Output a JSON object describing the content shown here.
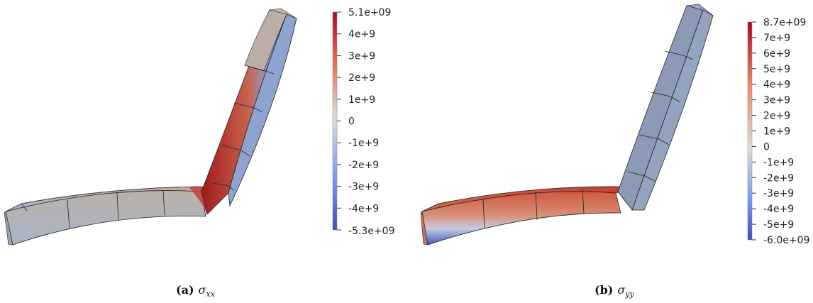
{
  "panels": [
    {
      "caption_label": "(a)",
      "caption_symbol": "σ",
      "caption_sub": "xx",
      "colorbar": {
        "max_label": "5.1e+09",
        "min_label": "-5.3e+09",
        "ticks": [
          "4e+9",
          "3e+9",
          "2e+9",
          "1e+9",
          "0",
          "-1e+9",
          "-2e+9",
          "-3e+9",
          "-4e+9"
        ]
      }
    },
    {
      "caption_label": "(b)",
      "caption_symbol": "σ",
      "caption_sub": "yy",
      "colorbar": {
        "max_label": "8.7e+09",
        "min_label": "-6.0e+09",
        "ticks": [
          "7e+9",
          "6e+9",
          "5e+9",
          "4e+9",
          "3e+9",
          "2e+9",
          "1e+9",
          "0",
          "-1e+9",
          "-2e+9",
          "-3e+9",
          "-4e+9",
          "-5e+9"
        ]
      }
    }
  ],
  "colors": {
    "max": "#b40426",
    "mid": "#dddcdc",
    "min": "#3b4cc0",
    "mesh_edge": "#222222"
  }
}
